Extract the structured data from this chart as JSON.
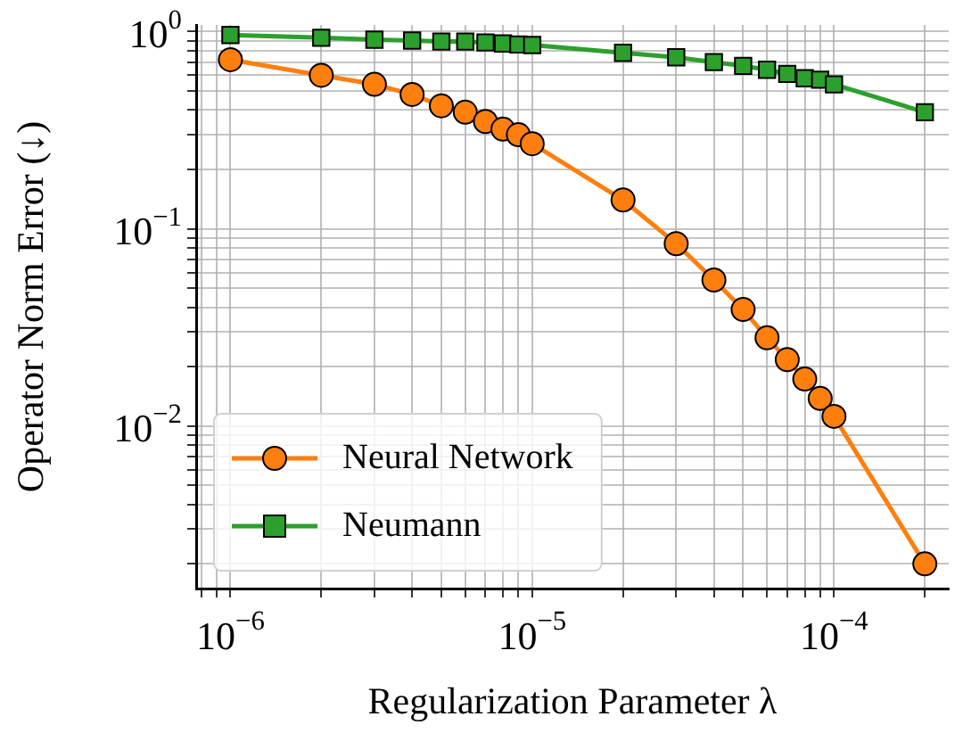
{
  "chart_data": {
    "type": "line",
    "xlabel": "Regularization Parameter λ",
    "ylabel": "Operator Norm Error (↓)",
    "log": "xy",
    "grid": true,
    "legend": "bottom left",
    "line_style": "solid",
    "xlim": [
      7.7e-07,
      0.00024
    ],
    "ylim": [
      0.0015,
      1.08
    ],
    "xticks": [
      {
        "value": 8e-07,
        "label": null
      },
      {
        "value": 9e-07,
        "label": null
      },
      {
        "value": 1e-06,
        "label": "10$^{−6}$"
      },
      {
        "value": 2e-06,
        "label": null
      },
      {
        "value": 3e-06,
        "label": null
      },
      {
        "value": 4e-06,
        "label": null
      },
      {
        "value": 5e-06,
        "label": null
      },
      {
        "value": 6e-06,
        "label": null
      },
      {
        "value": 7e-06,
        "label": null
      },
      {
        "value": 8e-06,
        "label": null
      },
      {
        "value": 9e-06,
        "label": null
      },
      {
        "value": 1e-05,
        "label": "10$^{−5}$"
      },
      {
        "value": 2e-05,
        "label": null
      },
      {
        "value": 3e-05,
        "label": null
      },
      {
        "value": 4e-05,
        "label": null
      },
      {
        "value": 5e-05,
        "label": null
      },
      {
        "value": 6e-05,
        "label": null
      },
      {
        "value": 7e-05,
        "label": null
      },
      {
        "value": 8e-05,
        "label": null
      },
      {
        "value": 9e-05,
        "label": null
      },
      {
        "value": 0.0001,
        "label": "10$^{−4}$"
      },
      {
        "value": 0.0002,
        "label": null
      }
    ],
    "yticks": [
      {
        "value": 0.002,
        "label": null
      },
      {
        "value": 0.003,
        "label": null
      },
      {
        "value": 0.004,
        "label": null
      },
      {
        "value": 0.005,
        "label": null
      },
      {
        "value": 0.006,
        "label": null
      },
      {
        "value": 0.007,
        "label": null
      },
      {
        "value": 0.008,
        "label": null
      },
      {
        "value": 0.009,
        "label": null
      },
      {
        "value": 0.01,
        "label": "10$^{−2}$"
      },
      {
        "value": 0.02,
        "label": null
      },
      {
        "value": 0.03,
        "label": null
      },
      {
        "value": 0.04,
        "label": null
      },
      {
        "value": 0.05,
        "label": null
      },
      {
        "value": 0.06,
        "label": null
      },
      {
        "value": 0.07,
        "label": null
      },
      {
        "value": 0.08,
        "label": null
      },
      {
        "value": 0.09,
        "label": null
      },
      {
        "value": 0.1,
        "label": "10$^{−1}$"
      },
      {
        "value": 0.2,
        "label": null
      },
      {
        "value": 0.3,
        "label": null
      },
      {
        "value": 0.4,
        "label": null
      },
      {
        "value": 0.5,
        "label": null
      },
      {
        "value": 0.6,
        "label": null
      },
      {
        "value": 0.7,
        "label": null
      },
      {
        "value": 0.8,
        "label": null
      },
      {
        "value": 0.9,
        "label": null
      },
      {
        "value": 1,
        "label": "10$^{0}$"
      }
    ],
    "x": [
      1e-06,
      2e-06,
      3e-06,
      4e-06,
      5e-06,
      6e-06,
      7e-06,
      8e-06,
      9e-06,
      1e-05,
      2e-05,
      3e-05,
      4e-05,
      5e-05,
      6e-05,
      7e-05,
      8e-05,
      9e-05,
      0.0001,
      0.0002
    ],
    "series": [
      {
        "name": "Neural Network",
        "color": "#ff7f0e",
        "marker": "circle",
        "values": [
          0.72,
          0.6,
          0.54,
          0.48,
          0.42,
          0.39,
          0.35,
          0.32,
          0.3,
          0.27,
          0.14,
          0.084,
          0.055,
          0.039,
          0.028,
          0.0217,
          0.0173,
          0.0138,
          0.0112,
          0.002
        ]
      },
      {
        "name": "Neumann",
        "color": "#2ca02c",
        "marker": "square",
        "values": [
          0.96,
          0.93,
          0.91,
          0.9,
          0.89,
          0.89,
          0.88,
          0.87,
          0.86,
          0.855,
          0.78,
          0.74,
          0.7,
          0.67,
          0.64,
          0.61,
          0.58,
          0.57,
          0.54,
          0.39
        ]
      }
    ]
  }
}
